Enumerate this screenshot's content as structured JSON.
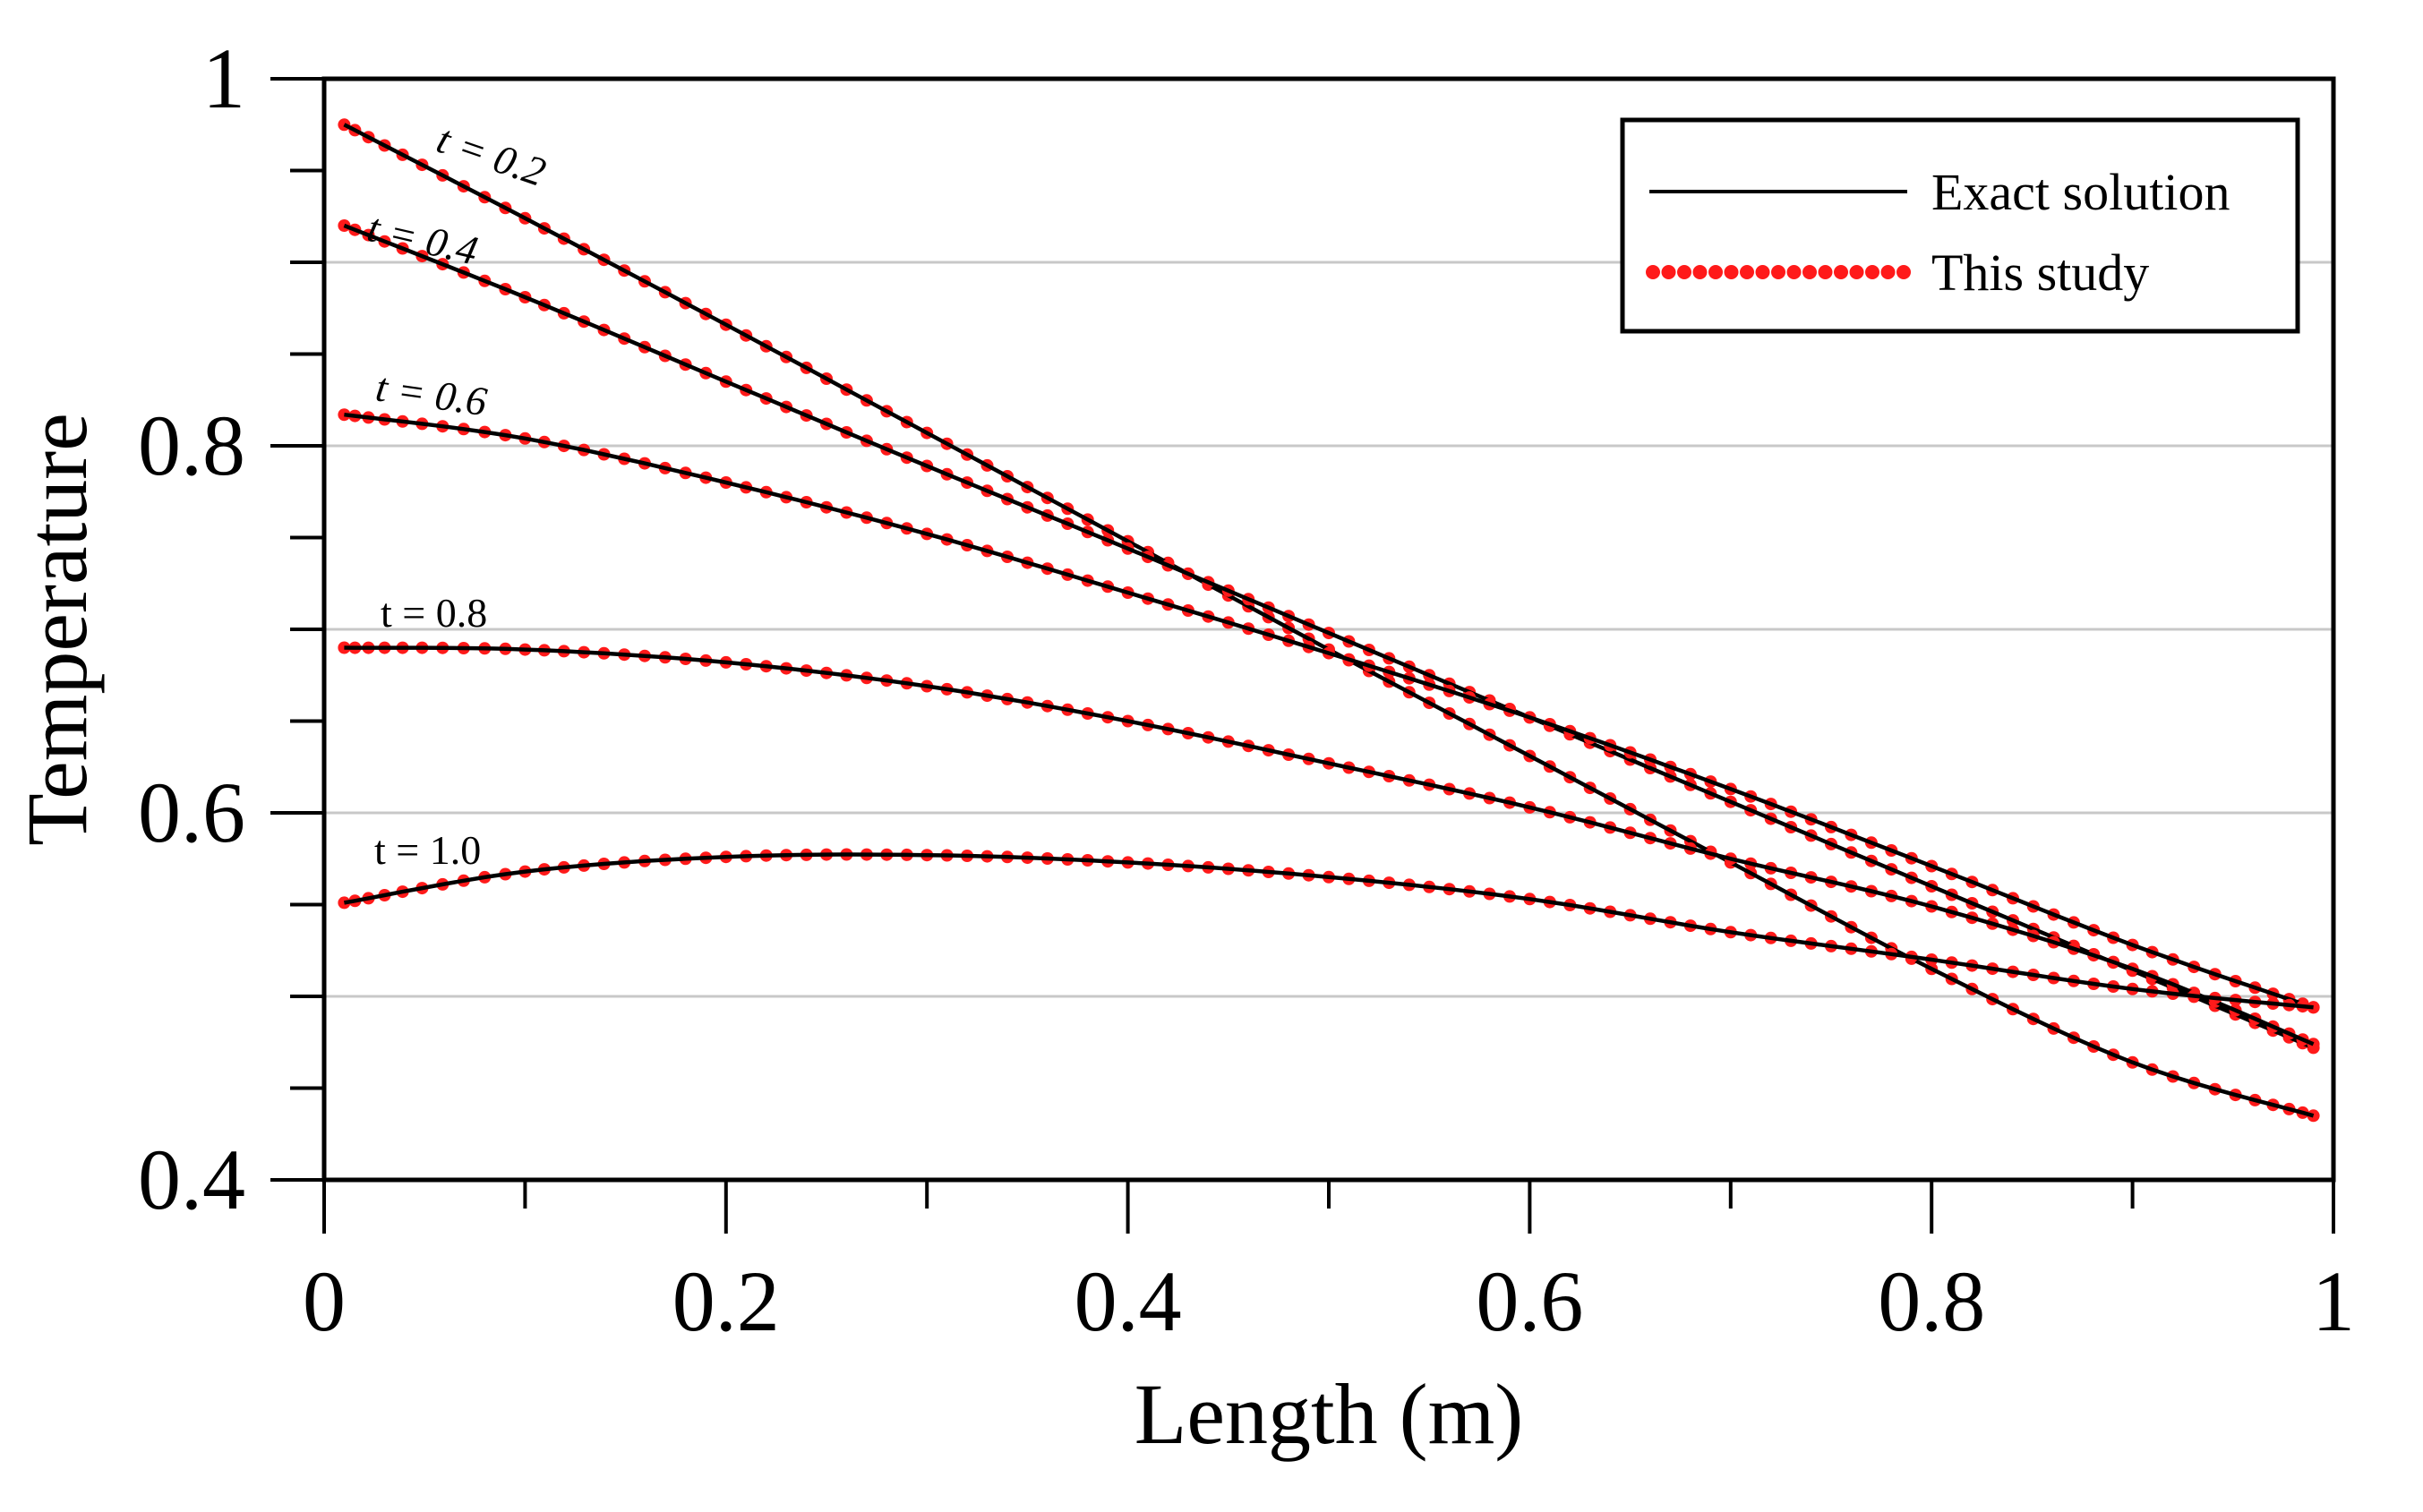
{
  "chart_data": {
    "type": "line",
    "title": "",
    "xlabel": "Length (m)",
    "ylabel": "Temperature",
    "xlim": [
      0,
      1
    ],
    "ylim": [
      0.4,
      1
    ],
    "x_ticks": [
      "0",
      "0.2",
      "0.4",
      "0.6",
      "0.8",
      "1"
    ],
    "y_ticks": [
      "0.4",
      "0.6",
      "0.8",
      "1"
    ],
    "grid": true,
    "legend_position": "top-right",
    "legend": [
      {
        "label": "Exact solution",
        "style": "line",
        "color": "#000000"
      },
      {
        "label": "This study",
        "style": "markers",
        "color": "#ff0000"
      }
    ],
    "series": [
      {
        "name": "t = 0.2",
        "label": "t = 0.2",
        "x": [
          0.01,
          0.1,
          0.2,
          0.3,
          0.4,
          0.5,
          0.6,
          0.7,
          0.8,
          0.9,
          0.99
        ],
        "y": [
          0.975,
          0.924,
          0.866,
          0.807,
          0.748,
          0.689,
          0.631,
          0.573,
          0.515,
          0.464,
          0.435
        ]
      },
      {
        "name": "t = 0.4",
        "label": "t = 0.4",
        "x": [
          0.01,
          0.1,
          0.2,
          0.3,
          0.4,
          0.5,
          0.6,
          0.7,
          0.8,
          0.9,
          0.99
        ],
        "y": [
          0.92,
          0.881,
          0.835,
          0.789,
          0.744,
          0.698,
          0.652,
          0.606,
          0.56,
          0.514,
          0.472
        ]
      },
      {
        "name": "t = 0.6",
        "label": "t = 0.6",
        "x": [
          0.01,
          0.1,
          0.2,
          0.3,
          0.4,
          0.5,
          0.6,
          0.7,
          0.8,
          0.9,
          0.99
        ],
        "y": [
          0.817,
          0.804,
          0.78,
          0.752,
          0.72,
          0.687,
          0.652,
          0.613,
          0.571,
          0.528,
          0.494
        ]
      },
      {
        "name": "t = 0.8",
        "label": "t = 0.8",
        "x": [
          0.01,
          0.1,
          0.2,
          0.3,
          0.4,
          0.5,
          0.6,
          0.7,
          0.8,
          0.9,
          0.99
        ],
        "y": [
          0.69,
          0.689,
          0.682,
          0.669,
          0.65,
          0.627,
          0.603,
          0.575,
          0.549,
          0.515,
          0.474
        ]
      },
      {
        "name": "t = 1.0",
        "label": "t = 1.0",
        "x": [
          0.01,
          0.1,
          0.2,
          0.3,
          0.4,
          0.5,
          0.6,
          0.7,
          0.8,
          0.9,
          0.99
        ],
        "y": [
          0.551,
          0.568,
          0.576,
          0.577,
          0.573,
          0.565,
          0.553,
          0.535,
          0.52,
          0.504,
          0.494
        ]
      }
    ]
  }
}
